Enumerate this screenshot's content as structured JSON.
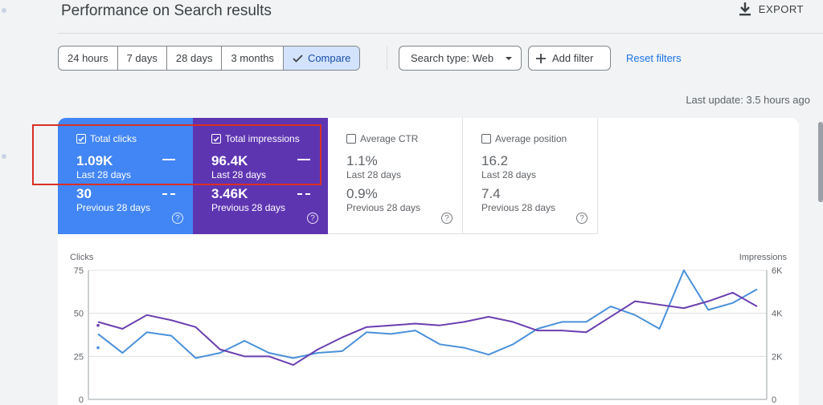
{
  "header": {
    "title": "Performance on Search results",
    "export_label": "EXPORT"
  },
  "filters": {
    "date_ranges": [
      {
        "label": "24 hours",
        "active": false
      },
      {
        "label": "7 days",
        "active": false
      },
      {
        "label": "28 days",
        "active": false
      },
      {
        "label": "3 months",
        "active": false
      },
      {
        "label": "Compare",
        "active": true
      }
    ],
    "search_type": "Search type: Web",
    "add_filter": "Add filter",
    "reset": "Reset filters",
    "last_update": "Last update: 3.5 hours ago"
  },
  "metrics": {
    "clicks": {
      "label": "Total clicks",
      "value": "1.09K",
      "period": "Last 28 days",
      "prev_value": "30",
      "prev_period": "Previous 28 days",
      "checked": true,
      "color": "#4285f4"
    },
    "impressions": {
      "label": "Total impressions",
      "value": "96.4K",
      "period": "Last 28 days",
      "prev_value": "3.46K",
      "prev_period": "Previous 28 days",
      "checked": true,
      "color": "#5e35b1"
    },
    "ctr": {
      "label": "Average CTR",
      "value": "1.1%",
      "period": "Last 28 days",
      "prev_value": "0.9%",
      "prev_period": "Previous 28 days",
      "checked": false
    },
    "position": {
      "label": "Average position",
      "value": "16.2",
      "period": "Last 28 days",
      "prev_value": "7.4",
      "prev_period": "Previous 28 days",
      "checked": false
    },
    "help_glyph": "?"
  },
  "chart_data": {
    "type": "line",
    "left_axis_label": "Clicks",
    "right_axis_label": "Impressions",
    "left_ticks": [
      "75",
      "50",
      "25",
      "0"
    ],
    "right_ticks": [
      "6K",
      "4K",
      "2K",
      "0"
    ],
    "ylim_left": [
      0,
      75
    ],
    "ylim_right": [
      0,
      6000
    ],
    "grid": true,
    "x": [
      1,
      2,
      3,
      4,
      5,
      6,
      7,
      8,
      9,
      10,
      11,
      12,
      13,
      14,
      15,
      16,
      17,
      18,
      19,
      20,
      21,
      22,
      23,
      24,
      25,
      26,
      27,
      28
    ],
    "series": [
      {
        "name": "Clicks",
        "axis": "left",
        "color": "#4a90d9",
        "values": [
          38,
          27,
          39,
          37,
          24,
          27,
          34,
          27,
          24,
          27,
          28,
          39,
          38,
          40,
          32,
          30,
          26,
          32,
          41,
          45,
          45,
          54,
          49,
          41,
          75,
          52,
          56,
          64
        ]
      },
      {
        "name": "Impressions",
        "axis": "left",
        "color": "#6a3fb0",
        "values": [
          45,
          41,
          49,
          46,
          42,
          29,
          25,
          25,
          20,
          29,
          36,
          42,
          43,
          44,
          43,
          45,
          48,
          45,
          40,
          40,
          39,
          48,
          57,
          55,
          53,
          57,
          62,
          54
        ]
      }
    ],
    "markers": [
      {
        "x": 1,
        "y": 30
      },
      {
        "x": 1,
        "y": 43
      }
    ]
  }
}
